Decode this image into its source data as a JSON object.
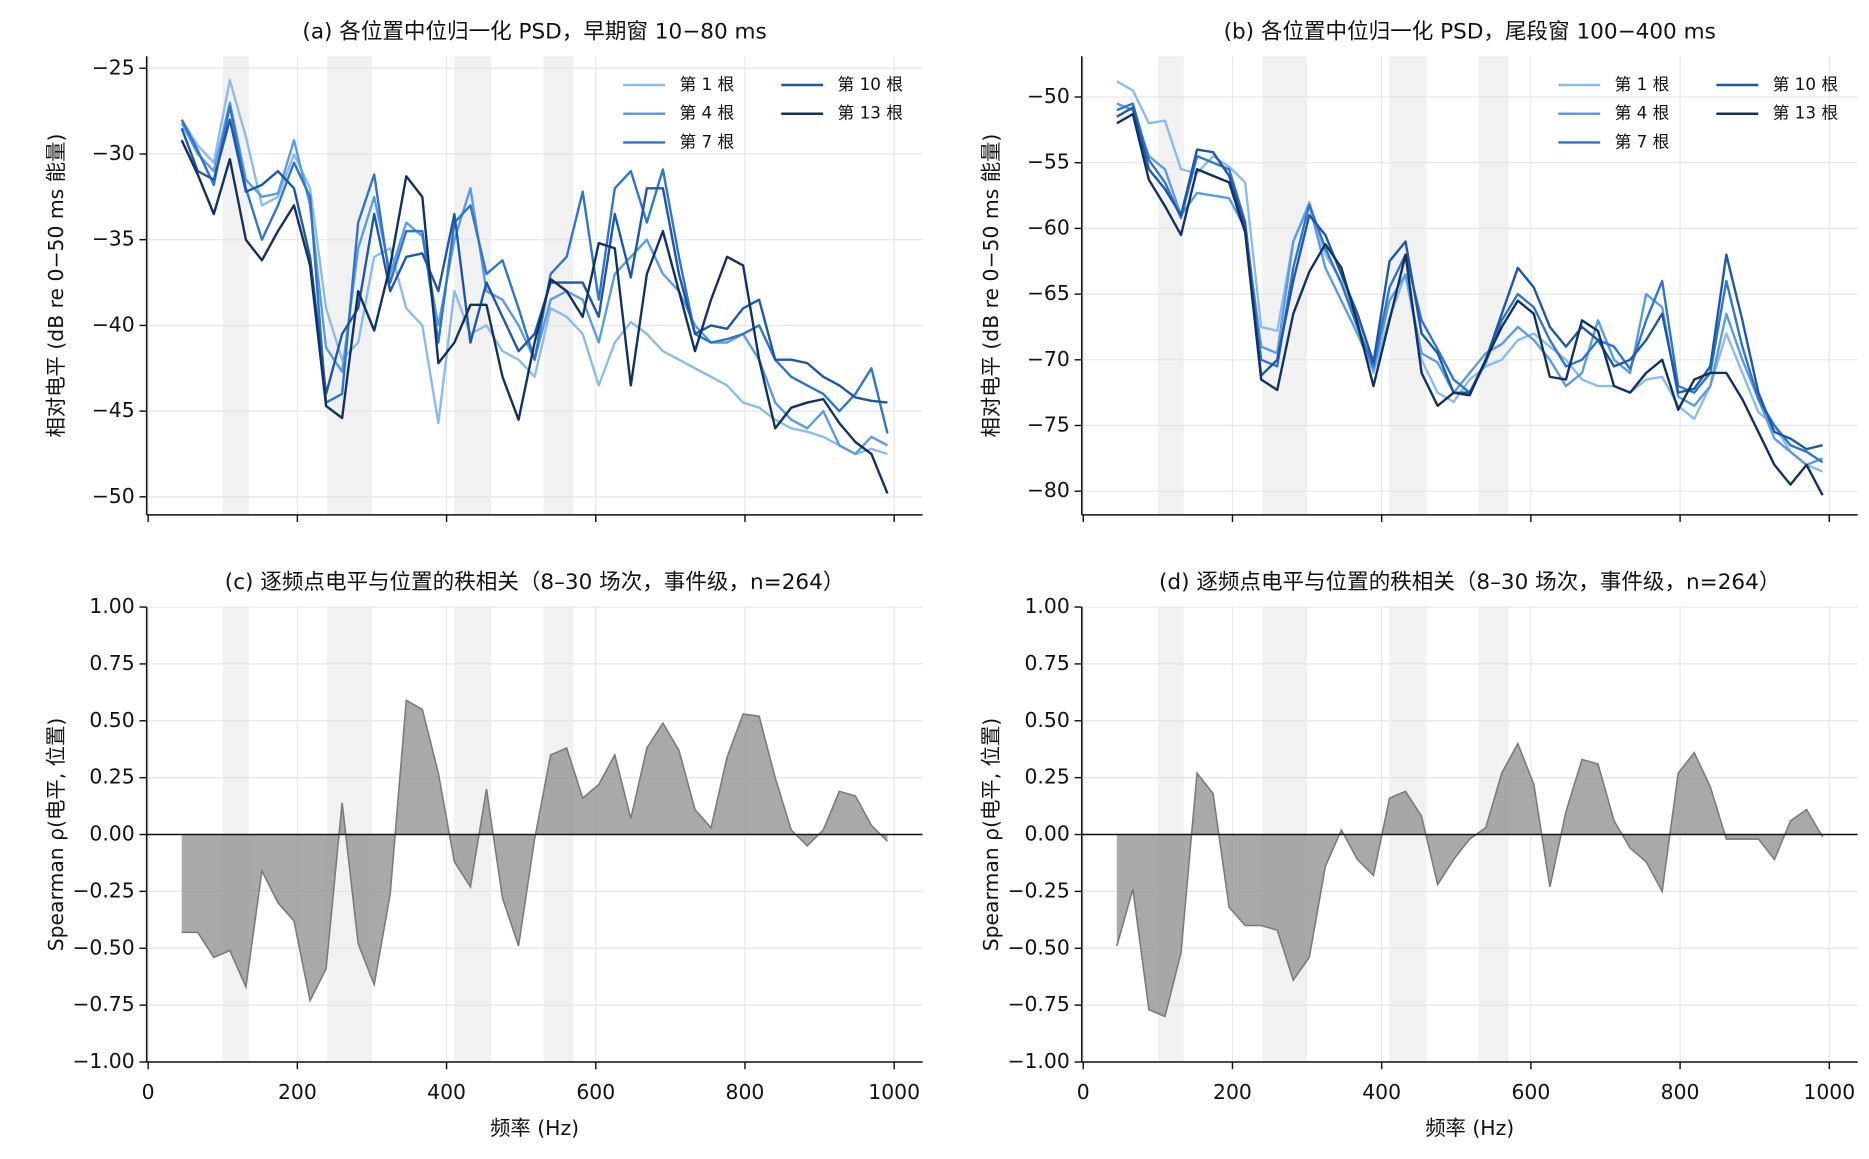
{
  "chart_data": [
    {
      "type": "line",
      "title": "(a) 各位置中位归一化 PSD，早期窗 10−80 ms",
      "ylabel": "相对电平 (dB re 0−50 ms 能量)",
      "x": [
        45,
        66.5,
        88,
        109.5,
        131,
        152.5,
        174,
        195.5,
        217,
        238.5,
        260,
        281.5,
        303,
        324.5,
        346,
        367.5,
        389,
        410.5,
        432,
        453.5,
        475,
        496.5,
        518,
        539.5,
        561,
        582.5,
        604,
        625.5,
        647,
        668.5,
        690,
        711.5,
        733,
        754.5,
        776,
        797.5,
        819,
        840.5,
        862,
        883.5,
        905,
        926.5,
        948,
        969.5,
        991
      ],
      "series": [
        {
          "name": "第 1 根",
          "color": "#8cbbea",
          "values": [
            -28,
            -29.5,
            -30.5,
            -25.7,
            -29,
            -33,
            -32.5,
            -30,
            -32,
            -39,
            -42,
            -41,
            -36,
            -35.5,
            -39,
            -40,
            -45.7,
            -38,
            -40.5,
            -40,
            -41.5,
            -42,
            -43,
            -39,
            -39.5,
            -40.5,
            -43.5,
            -41,
            -39.8,
            -40.5,
            -41.5,
            -42,
            -42.5,
            -43,
            -43.5,
            -44.5,
            -44.8,
            -45.5,
            -46,
            -46.2,
            -46.5,
            -47,
            -47.5,
            -47.2,
            -47.5
          ]
        },
        {
          "name": "第 4 根",
          "color": "#5b9be0",
          "values": [
            -28.2,
            -30,
            -31,
            -27,
            -31.5,
            -32.5,
            -32.3,
            -29.2,
            -33,
            -41.3,
            -42.7,
            -35.5,
            -32.5,
            -37,
            -34,
            -34.8,
            -40,
            -35,
            -32,
            -38,
            -38.5,
            -40,
            -42,
            -38.5,
            -38,
            -38.5,
            -41,
            -37,
            -36,
            -35,
            -37,
            -38,
            -40,
            -41,
            -41,
            -40.5,
            -42,
            -44.5,
            -45.5,
            -46,
            -45,
            -47,
            -47.5,
            -46.5,
            -47
          ]
        },
        {
          "name": "第 7 根",
          "color": "#2f75c9",
          "values": [
            -28,
            -29.8,
            -31.8,
            -27.2,
            -32,
            -35,
            -33,
            -30.5,
            -32.5,
            -44.5,
            -44,
            -34,
            -31.2,
            -37.5,
            -34.5,
            -34.5,
            -41,
            -34,
            -33,
            -37,
            -36.2,
            -39,
            -42,
            -37,
            -36,
            -32.2,
            -38.5,
            -32,
            -31,
            -34,
            -30.9,
            -36,
            -40.5,
            -41,
            -40.8,
            -40.5,
            -40,
            -42,
            -43,
            -43.5,
            -44,
            -45,
            -44,
            -42.5,
            -46.3
          ]
        },
        {
          "name": "第 10 根",
          "color": "#1f57a4",
          "values": [
            -28.5,
            -31,
            -31.5,
            -28,
            -32.2,
            -31.8,
            -31,
            -32,
            -36,
            -44,
            -40.5,
            -39,
            -33.5,
            -38,
            -36,
            -35.8,
            -38,
            -33.5,
            -41,
            -37.5,
            -39.5,
            -41.5,
            -40.5,
            -37.5,
            -37.5,
            -37.5,
            -39.5,
            -33.5,
            -37.2,
            -32,
            -32,
            -37,
            -40.5,
            -40,
            -40.2,
            -39,
            -38.5,
            -42,
            -42,
            -42.2,
            -43,
            -43.5,
            -44.2,
            -44.4,
            -44.5
          ]
        },
        {
          "name": "第 13 根",
          "color": "#11325f",
          "values": [
            -29.2,
            -31.2,
            -33.5,
            -30.3,
            -35,
            -36.2,
            -34.5,
            -33,
            -36.5,
            -44.7,
            -45.4,
            -38,
            -40.3,
            -36.5,
            -31.3,
            -32.5,
            -42.2,
            -41,
            -38.8,
            -38.8,
            -43,
            -45.5,
            -41,
            -37.3,
            -38,
            -39.5,
            -35.2,
            -35.5,
            -43.5,
            -37,
            -34.5,
            -38,
            -41.5,
            -38.5,
            -36,
            -36.5,
            -42,
            -46,
            -44.8,
            -44.5,
            -44.3,
            -45.7,
            -46.8,
            -47.5,
            -49.8
          ]
        }
      ],
      "xlim": [
        -2,
        1038
      ],
      "xticks": [
        0,
        200,
        400,
        600,
        800,
        1000
      ],
      "xtick_labels": false,
      "ylim": [
        -51.05,
        -24.3
      ],
      "yticks": [
        {
          "value": -25,
          "label": "−25"
        },
        {
          "value": -30,
          "label": "−30"
        },
        {
          "value": -35,
          "label": "−35"
        },
        {
          "value": -40,
          "label": "−40"
        },
        {
          "value": -45,
          "label": "−45"
        },
        {
          "value": -50,
          "label": "−50"
        }
      ],
      "shaded_bands": [
        [
          100,
          135
        ],
        [
          240,
          300
        ],
        [
          410,
          460
        ],
        [
          530,
          570
        ]
      ],
      "grid": true,
      "legend": "upper right"
    },
    {
      "type": "line",
      "title": "(b) 各位置中位归一化 PSD，尾段窗 100−400 ms",
      "ylabel": "相对电平 (dB re 0−50 ms 能量)",
      "x": [
        45,
        66.5,
        88,
        109.5,
        131,
        152.5,
        174,
        195.5,
        217,
        238.5,
        260,
        281.5,
        303,
        324.5,
        346,
        367.5,
        389,
        410.5,
        432,
        453.5,
        475,
        496.5,
        518,
        539.5,
        561,
        582.5,
        604,
        625.5,
        647,
        668.5,
        690,
        711.5,
        733,
        754.5,
        776,
        797.5,
        819,
        840.5,
        862,
        883.5,
        905,
        926.5,
        948,
        969.5,
        991
      ],
      "series": [
        {
          "name": "第 1 根",
          "color": "#8cbbea",
          "values": [
            -48.8,
            -49.5,
            -52,
            -51.8,
            -55.5,
            -55.8,
            -54.5,
            -55.3,
            -56.5,
            -67.5,
            -67.8,
            -61,
            -58,
            -62,
            -64,
            -67,
            -71,
            -66.8,
            -63.5,
            -70,
            -72.5,
            -73.2,
            -71.5,
            -70.5,
            -70,
            -68.5,
            -68,
            -69,
            -70,
            -71.5,
            -72,
            -72,
            -72.5,
            -71.5,
            -71.3,
            -73.5,
            -74.5,
            -72,
            -68,
            -71,
            -74,
            -75,
            -77,
            -78,
            -78.5
          ]
        },
        {
          "name": "第 4 根",
          "color": "#5b9be0",
          "values": [
            -50.5,
            -51,
            -54.5,
            -55.5,
            -59,
            -57.3,
            -57.5,
            -57.7,
            -60,
            -69,
            -69.5,
            -61,
            -58.2,
            -63,
            -65.5,
            -68,
            -70.8,
            -65.5,
            -63.5,
            -69.5,
            -70.2,
            -72.5,
            -71,
            -69.5,
            -68.8,
            -67.5,
            -68.5,
            -70,
            -72,
            -71,
            -67,
            -70,
            -71,
            -65,
            -66,
            -72.8,
            -73.5,
            -72,
            -66.5,
            -70,
            -73,
            -76,
            -77,
            -78,
            -77.5
          ]
        },
        {
          "name": "第 7 根",
          "color": "#2f75c9",
          "values": [
            -51,
            -50.5,
            -54.8,
            -56.5,
            -59.2,
            -54.5,
            -55,
            -55.5,
            -59.5,
            -70,
            -70.5,
            -63,
            -58.2,
            -61.5,
            -64.2,
            -67.5,
            -70.5,
            -64.5,
            -62,
            -67,
            -69.2,
            -71.5,
            -72.5,
            -70.2,
            -67,
            -65,
            -66,
            -68.5,
            -70.5,
            -70,
            -68.5,
            -69,
            -70.7,
            -67,
            -64,
            -72,
            -72.5,
            -71,
            -64,
            -69,
            -73,
            -75,
            -76.5,
            -77,
            -77.8
          ]
        },
        {
          "name": "第 10 根",
          "color": "#1f57a4",
          "values": [
            -51.5,
            -50.8,
            -55.5,
            -57,
            -59,
            -54,
            -54.2,
            -56,
            -59.8,
            -71.2,
            -70,
            -64,
            -59,
            -60.5,
            -63.5,
            -66.5,
            -70.2,
            -62.5,
            -61,
            -68,
            -69.5,
            -72.5,
            -72.5,
            -70,
            -66.5,
            -63,
            -64.5,
            -67.5,
            -69,
            -67.5,
            -68.5,
            -70.5,
            -70,
            -68.5,
            -66.5,
            -72.5,
            -72.2,
            -70.5,
            -62,
            -67,
            -72.5,
            -75.5,
            -76,
            -76.8,
            -76.5
          ]
        },
        {
          "name": "第 13 根",
          "color": "#11325f",
          "values": [
            -52,
            -51.3,
            -56.3,
            -58.3,
            -60.5,
            -55.5,
            -56,
            -56.5,
            -60.3,
            -71.5,
            -72.3,
            -66.5,
            -63.3,
            -61.2,
            -63,
            -67.2,
            -72,
            -67,
            -62,
            -71,
            -73.5,
            -72.5,
            -72.7,
            -70,
            -67.5,
            -65.5,
            -66.5,
            -71.3,
            -71.5,
            -67,
            -67.8,
            -72,
            -72.5,
            -71,
            -70,
            -73.8,
            -71.5,
            -71,
            -71,
            -73,
            -75.5,
            -78,
            -79.5,
            -78,
            -80.3
          ]
        }
      ],
      "xlim": [
        -2,
        1038
      ],
      "xticks": [
        0,
        200,
        400,
        600,
        800,
        1000
      ],
      "xtick_labels": false,
      "ylim": [
        -81.8,
        -46.9
      ],
      "yticks": [
        {
          "value": -50,
          "label": "−50"
        },
        {
          "value": -55,
          "label": "−55"
        },
        {
          "value": -60,
          "label": "−60"
        },
        {
          "value": -65,
          "label": "−65"
        },
        {
          "value": -70,
          "label": "−70"
        },
        {
          "value": -75,
          "label": "−75"
        },
        {
          "value": -80,
          "label": "−80"
        }
      ],
      "shaded_bands": [
        [
          100,
          135
        ],
        [
          240,
          300
        ],
        [
          410,
          460
        ],
        [
          530,
          570
        ]
      ],
      "grid": true,
      "legend": "upper right"
    },
    {
      "type": "area",
      "title": "(c) 逐频点电平与位置的秩相关（8–30 场次，事件级，n=264）",
      "xlabel": "频率 (Hz)",
      "ylabel": "Spearman ρ(电平, 位置)",
      "x": [
        45,
        66.5,
        88,
        109.5,
        131,
        152.5,
        174,
        195.5,
        217,
        238.5,
        260,
        281.5,
        303,
        324.5,
        346,
        367.5,
        389,
        410.5,
        432,
        453.5,
        475,
        496.5,
        518,
        539.5,
        561,
        582.5,
        604,
        625.5,
        647,
        668.5,
        690,
        711.5,
        733,
        754.5,
        776,
        797.5,
        819,
        840.5,
        862,
        883.5,
        905,
        926.5,
        948,
        969.5,
        991
      ],
      "values": [
        -0.43,
        -0.43,
        -0.54,
        -0.51,
        -0.67,
        -0.16,
        -0.3,
        -0.38,
        -0.73,
        -0.59,
        0.14,
        -0.48,
        -0.66,
        -0.26,
        0.59,
        0.55,
        0.27,
        -0.12,
        -0.23,
        0.2,
        -0.28,
        -0.49,
        -0.02,
        0.35,
        0.38,
        0.16,
        0.22,
        0.35,
        0.07,
        0.38,
        0.49,
        0.37,
        0.11,
        0.03,
        0.34,
        0.53,
        0.52,
        0.25,
        0.02,
        -0.05,
        0.02,
        0.19,
        0.17,
        0.04,
        -0.03
      ],
      "color": "#9a9a9a",
      "xlim": [
        -2,
        1038
      ],
      "xticks": [
        0,
        200,
        400,
        600,
        800,
        1000
      ],
      "xtick_labels": true,
      "ylim": [
        -1,
        1
      ],
      "yticks": [
        {
          "value": 1,
          "label": "1.00"
        },
        {
          "value": 0.75,
          "label": "0.75"
        },
        {
          "value": 0.5,
          "label": "0.50"
        },
        {
          "value": 0.25,
          "label": "0.25"
        },
        {
          "value": 0,
          "label": "0.00"
        },
        {
          "value": -0.25,
          "label": "−0.25"
        },
        {
          "value": -0.5,
          "label": "−0.50"
        },
        {
          "value": -0.75,
          "label": "−0.75"
        },
        {
          "value": -1,
          "label": "−1.00"
        }
      ],
      "shaded_bands": [
        [
          100,
          135
        ],
        [
          240,
          300
        ],
        [
          410,
          460
        ],
        [
          530,
          570
        ]
      ],
      "grid": true
    },
    {
      "type": "area",
      "title": "(d) 逐频点电平与位置的秩相关（8–30 场次，事件级，n=264）",
      "xlabel": "频率 (Hz)",
      "ylabel": "Spearman ρ(电平, 位置)",
      "x": [
        45,
        66.5,
        88,
        109.5,
        131,
        152.5,
        174,
        195.5,
        217,
        238.5,
        260,
        281.5,
        303,
        324.5,
        346,
        367.5,
        389,
        410.5,
        432,
        453.5,
        475,
        496.5,
        518,
        539.5,
        561,
        582.5,
        604,
        625.5,
        647,
        668.5,
        690,
        711.5,
        733,
        754.5,
        776,
        797.5,
        819,
        840.5,
        862,
        883.5,
        905,
        926.5,
        948,
        969.5,
        991
      ],
      "values": [
        -0.49,
        -0.24,
        -0.77,
        -0.8,
        -0.52,
        0.27,
        0.18,
        -0.32,
        -0.4,
        -0.4,
        -0.42,
        -0.64,
        -0.54,
        -0.14,
        0.02,
        -0.11,
        -0.18,
        0.16,
        0.19,
        0.08,
        -0.22,
        -0.11,
        -0.02,
        0.03,
        0.27,
        0.4,
        0.22,
        -0.23,
        0.1,
        0.33,
        0.31,
        0.06,
        -0.06,
        -0.12,
        -0.25,
        0.27,
        0.36,
        0.21,
        -0.02,
        -0.02,
        -0.02,
        -0.11,
        0.06,
        0.11,
        -0.01
      ],
      "color": "#9a9a9a",
      "xlim": [
        -2,
        1038
      ],
      "xticks": [
        0,
        200,
        400,
        600,
        800,
        1000
      ],
      "xtick_labels": true,
      "ylim": [
        -1,
        1
      ],
      "yticks": [
        {
          "value": 1,
          "label": "1.00"
        },
        {
          "value": 0.75,
          "label": "0.75"
        },
        {
          "value": 0.5,
          "label": "0.50"
        },
        {
          "value": 0.25,
          "label": "0.25"
        },
        {
          "value": 0,
          "label": "0.00"
        },
        {
          "value": -0.25,
          "label": "−0.25"
        },
        {
          "value": -0.5,
          "label": "−0.50"
        },
        {
          "value": -0.75,
          "label": "−0.75"
        },
        {
          "value": -1,
          "label": "−1.00"
        }
      ],
      "shaded_bands": [
        [
          100,
          135
        ],
        [
          240,
          300
        ],
        [
          410,
          460
        ],
        [
          530,
          570
        ]
      ],
      "grid": true
    }
  ]
}
